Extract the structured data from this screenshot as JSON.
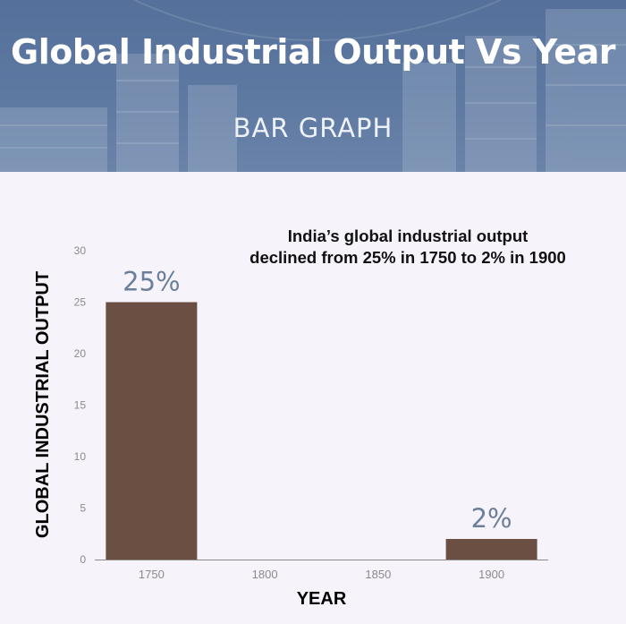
{
  "banner": {
    "title": "Global Industrial Output Vs Year",
    "subtitle": "BAR GRAPH"
  },
  "chart_data": {
    "type": "bar",
    "categories": [
      "1750",
      "1800",
      "1850",
      "1900"
    ],
    "values": [
      25,
      null,
      null,
      2
    ],
    "data_labels": [
      "25%",
      "",
      "",
      "2%"
    ],
    "xlabel": "YEAR",
    "ylabel": "GLOBAL INDUSTRIAL OUTPUT",
    "ylim": [
      0,
      30
    ],
    "yticks": [
      0,
      5,
      10,
      15,
      20,
      25,
      30
    ],
    "grid": false,
    "annotation": [
      "India’s global industrial output",
      "declined from 25% in 1750 to 2% in 1900"
    ],
    "colors": {
      "bar": "#6b4f42",
      "data_label": "#6b7f9a",
      "tick_label": "#8a8a8a",
      "axis": "#8a8a8a"
    }
  }
}
